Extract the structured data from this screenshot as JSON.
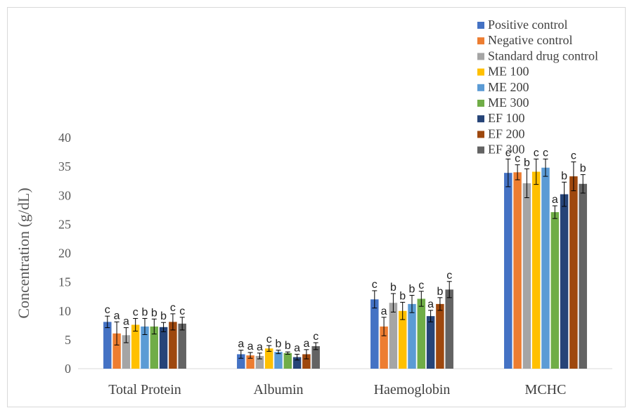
{
  "chart_data": {
    "type": "bar",
    "title": "",
    "xlabel": "",
    "ylabel": "Concentration (g/dL)",
    "ylim": [
      0,
      40
    ],
    "yticks": [
      0,
      5,
      10,
      15,
      20,
      25,
      30,
      35,
      40
    ],
    "categories": [
      "Total Protein",
      "Albumin",
      "Haemoglobin",
      "MCHC"
    ],
    "legend_position": "top-right",
    "grid": false,
    "series": [
      {
        "name": "Positive control",
        "color": "#4472C4",
        "values": [
          8.1,
          2.5,
          12.0,
          33.9
        ],
        "errors": [
          1.0,
          0.7,
          1.5,
          2.4
        ],
        "letters": [
          "c",
          "a",
          "c",
          "c"
        ]
      },
      {
        "name": "Negative control",
        "color": "#ED7D31",
        "values": [
          6.1,
          2.3,
          7.3,
          34.0
        ],
        "errors": [
          2.0,
          0.5,
          1.6,
          1.3
        ],
        "letters": [
          "a",
          "a",
          "a",
          "c"
        ]
      },
      {
        "name": "Standard drug control",
        "color": "#A5A5A5",
        "values": [
          5.8,
          2.2,
          11.4,
          32.1
        ],
        "errors": [
          1.3,
          0.5,
          1.6,
          2.5
        ],
        "letters": [
          "a",
          "a",
          "b",
          "b"
        ]
      },
      {
        "name": "ME 100",
        "color": "#FFC000",
        "values": [
          7.6,
          3.5,
          10.0,
          34.1
        ],
        "errors": [
          1.1,
          0.5,
          1.5,
          2.2
        ],
        "letters": [
          "c",
          "c",
          "b",
          "c"
        ]
      },
      {
        "name": "ME 200",
        "color": "#5B9BD5",
        "values": [
          7.3,
          2.9,
          11.2,
          34.8
        ],
        "errors": [
          1.4,
          0.3,
          1.5,
          1.5
        ],
        "letters": [
          "b",
          "b",
          "b",
          "c"
        ]
      },
      {
        "name": "ME 300",
        "color": "#70AD47",
        "values": [
          7.3,
          2.7,
          12.1,
          27.1
        ],
        "errors": [
          1.3,
          0.2,
          1.3,
          1.1
        ],
        "letters": [
          "b",
          "b",
          "c",
          "a"
        ]
      },
      {
        "name": "EF 100",
        "color": "#264478",
        "values": [
          7.2,
          2.0,
          9.1,
          30.2
        ],
        "errors": [
          0.8,
          0.5,
          1.0,
          2.1
        ],
        "letters": [
          "b",
          "a",
          "a",
          "b"
        ]
      },
      {
        "name": "EF 200",
        "color": "#9E480E",
        "values": [
          8.1,
          2.5,
          11.2,
          33.3
        ],
        "errors": [
          1.4,
          0.8,
          1.1,
          2.5
        ],
        "letters": [
          "c",
          "a",
          "b",
          "c"
        ]
      },
      {
        "name": "EF 300",
        "color": "#636363",
        "values": [
          7.8,
          3.9,
          13.7,
          32.0
        ],
        "errors": [
          1.1,
          0.6,
          1.4,
          1.6
        ],
        "letters": [
          "c",
          "c",
          "c",
          "b"
        ]
      }
    ]
  }
}
